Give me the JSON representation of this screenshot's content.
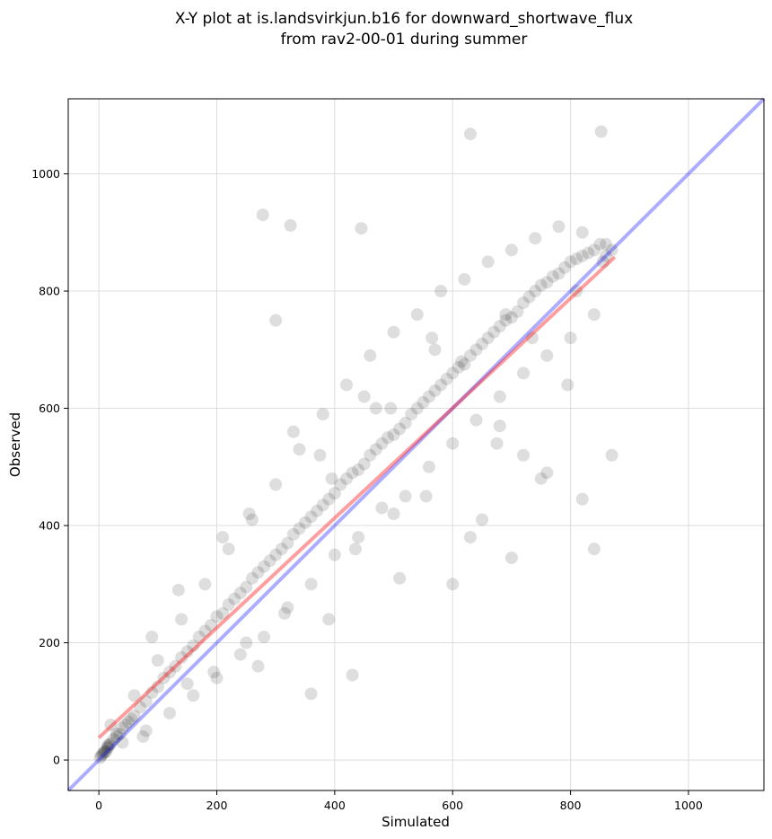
{
  "chart_data": {
    "type": "scatter",
    "title_lines": [
      "X-Y plot at is.landsvirkjun.b16 for downward_shortwave_flux",
      "from rav2-00-01 during summer"
    ],
    "xlabel": "Simulated",
    "ylabel": "Observed",
    "xlim": [
      -52,
      1128
    ],
    "ylim": [
      -52,
      1128
    ],
    "xticks": [
      0,
      200,
      400,
      600,
      800,
      1000
    ],
    "yticks": [
      0,
      200,
      400,
      600,
      800,
      1000
    ],
    "grid": true,
    "colors": {
      "points": "#000000",
      "fit_line": "#ff0000",
      "identity_line": "#0000ff",
      "grid": "#dddddd"
    },
    "fit_line": {
      "x": [
        0,
        875
      ],
      "y": [
        38,
        858
      ]
    },
    "identity_line": {
      "x": [
        -52,
        1128
      ],
      "y": [
        -52,
        1128
      ]
    },
    "points": {
      "x": [
        2,
        4,
        6,
        8,
        10,
        12,
        14,
        16,
        18,
        20,
        25,
        30,
        35,
        40,
        45,
        50,
        55,
        60,
        70,
        80,
        90,
        100,
        110,
        120,
        130,
        140,
        150,
        160,
        170,
        180,
        190,
        200,
        210,
        220,
        230,
        240,
        250,
        260,
        270,
        280,
        290,
        300,
        310,
        320,
        330,
        340,
        350,
        360,
        370,
        380,
        390,
        400,
        410,
        420,
        430,
        440,
        450,
        460,
        470,
        480,
        490,
        500,
        510,
        520,
        530,
        540,
        550,
        560,
        570,
        580,
        590,
        600,
        610,
        620,
        630,
        640,
        650,
        660,
        670,
        680,
        690,
        700,
        710,
        720,
        730,
        740,
        750,
        760,
        770,
        780,
        790,
        800,
        810,
        820,
        830,
        840,
        850,
        860,
        870,
        20,
        40,
        60,
        80,
        100,
        120,
        140,
        160,
        180,
        200,
        220,
        240,
        260,
        280,
        300,
        320,
        340,
        360,
        380,
        400,
        420,
        440,
        460,
        480,
        500,
        520,
        540,
        560,
        580,
        600,
        620,
        640,
        660,
        680,
        700,
        720,
        740,
        760,
        780,
        800,
        820,
        840,
        860,
        30,
        90,
        150,
        210,
        270,
        330,
        390,
        450,
        510,
        570,
        630,
        690,
        750,
        810,
        870,
        15,
        75,
        135,
        195,
        255,
        315,
        375,
        435,
        495,
        555,
        615,
        675,
        735,
        795,
        855,
        278,
        325,
        445,
        630,
        852,
        360,
        430,
        600,
        700,
        760,
        840,
        250,
        500,
        650,
        820,
        680,
        720,
        565,
        470,
        395,
        300
      ],
      "y": [
        4,
        7,
        10,
        12,
        15,
        14,
        20,
        22,
        26,
        28,
        35,
        40,
        44,
        55,
        60,
        65,
        70,
        75,
        90,
        100,
        115,
        125,
        140,
        150,
        160,
        175,
        185,
        195,
        210,
        220,
        230,
        245,
        250,
        265,
        275,
        285,
        295,
        310,
        320,
        330,
        340,
        350,
        360,
        370,
        385,
        395,
        405,
        415,
        425,
        435,
        445,
        455,
        470,
        480,
        490,
        495,
        505,
        520,
        530,
        540,
        550,
        555,
        565,
        575,
        590,
        600,
        610,
        620,
        630,
        640,
        650,
        660,
        670,
        675,
        690,
        700,
        710,
        720,
        730,
        740,
        750,
        755,
        765,
        780,
        790,
        800,
        810,
        815,
        825,
        830,
        840,
        850,
        855,
        860,
        865,
        870,
        880,
        860,
        870,
        60,
        30,
        110,
        50,
        170,
        80,
        240,
        110,
        300,
        140,
        360,
        180,
        410,
        210,
        470,
        260,
        530,
        300,
        590,
        350,
        640,
        380,
        690,
        430,
        730,
        450,
        760,
        500,
        800,
        540,
        820,
        580,
        850,
        620,
        870,
        660,
        890,
        690,
        910,
        720,
        900,
        760,
        880,
        45,
        210,
        130,
        380,
        160,
        560,
        240,
        620,
        310,
        700,
        380,
        760,
        480,
        800,
        520,
        25,
        40,
        290,
        150,
        420,
        250,
        520,
        360,
        600,
        450,
        680,
        540,
        720,
        640,
        850,
        930,
        912,
        907,
        1068,
        1072,
        113,
        145,
        300,
        345,
        490,
        360,
        200,
        420,
        410,
        445,
        570,
        520,
        720,
        600,
        480,
        750
      ]
    }
  }
}
